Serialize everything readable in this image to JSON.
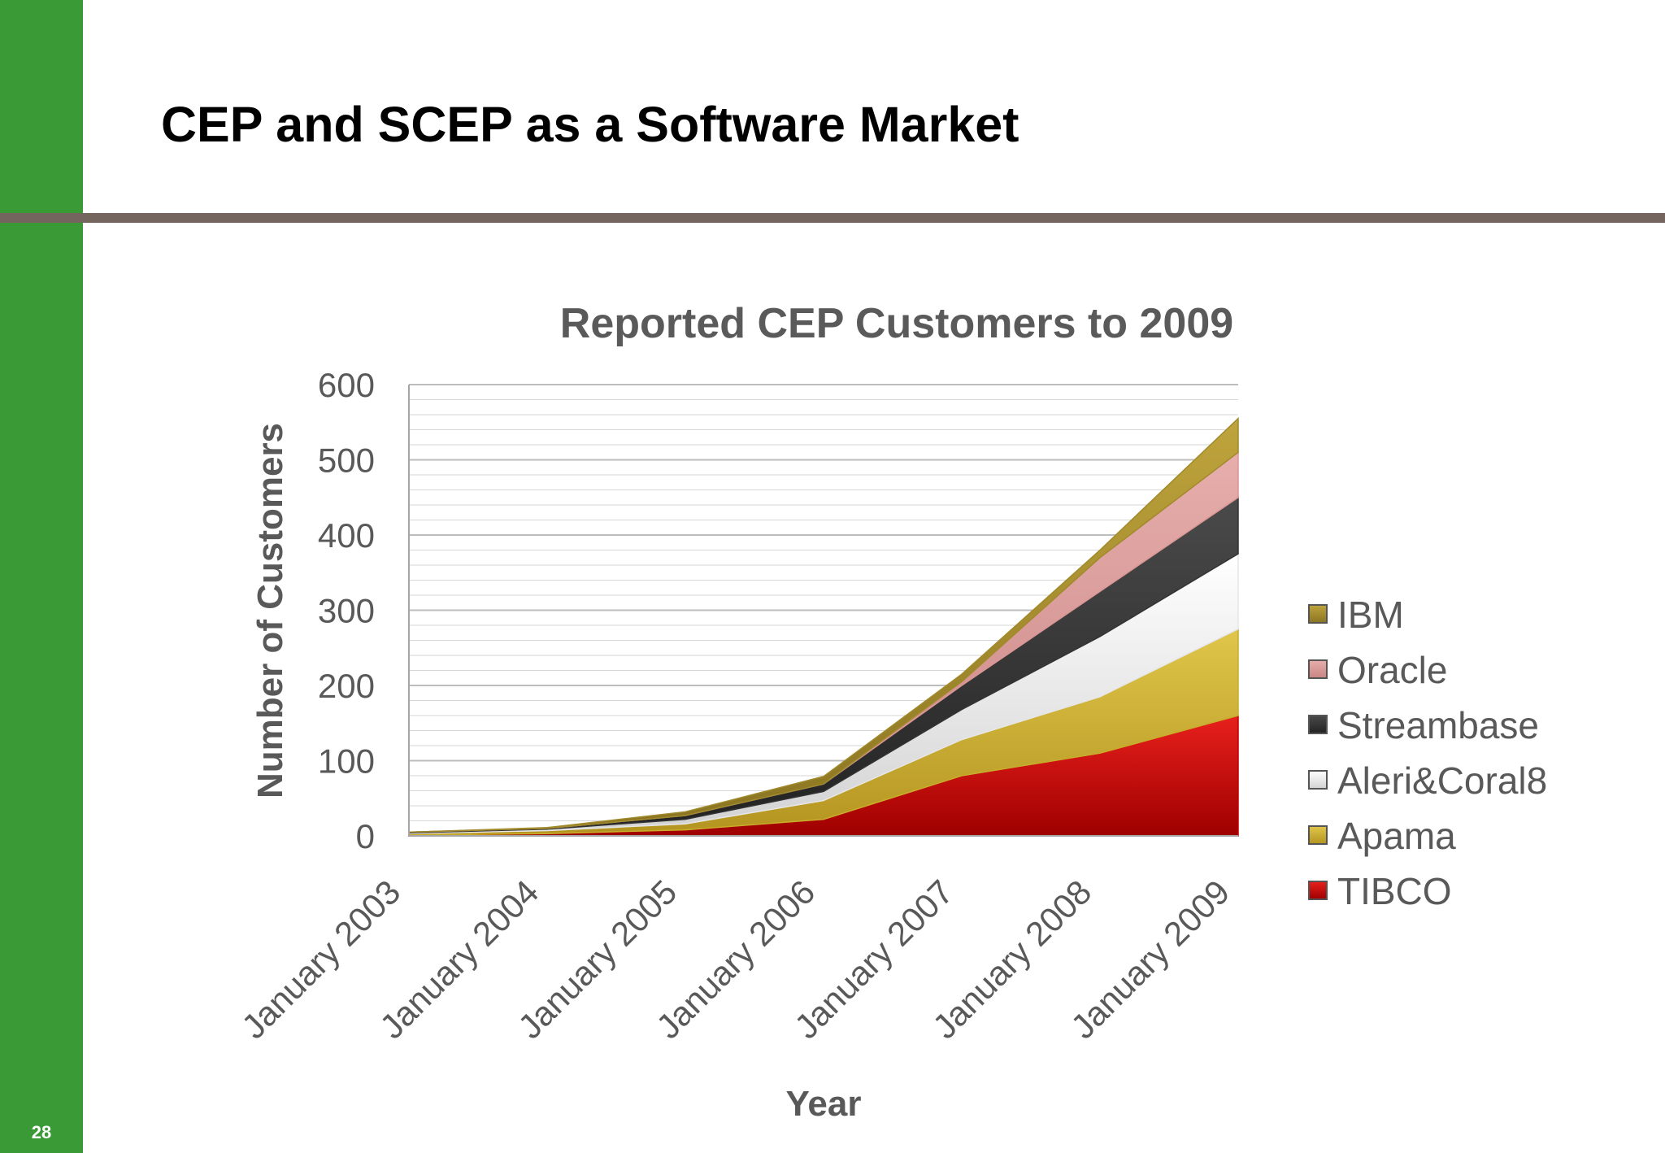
{
  "slide": {
    "title": "CEP and SCEP as a Software Market",
    "page_number": "28"
  },
  "colors": {
    "sidebar": "#3a9a35",
    "divider": "#74665f",
    "grid": "#bfbfbf",
    "text": "#595959"
  },
  "chart_data": {
    "type": "area",
    "stacked": true,
    "title": "Reported CEP Customers to 2009",
    "xlabel": "Year",
    "ylabel": "Number of Customers",
    "categories": [
      "January 2003",
      "January 2004",
      "January 2005",
      "January 2006",
      "January 2007",
      "January 2008",
      "January 2009"
    ],
    "ylim": [
      0,
      600
    ],
    "yticks": [
      0,
      100,
      200,
      300,
      400,
      500,
      600
    ],
    "grid": true,
    "legend_position": "right",
    "series": [
      {
        "name": "TIBCO",
        "color": "#c00000",
        "values": [
          1,
          3,
          8,
          22,
          80,
          110,
          160
        ]
      },
      {
        "name": "Apama",
        "color": "#c9ad2a",
        "values": [
          2,
          4,
          8,
          25,
          48,
          75,
          115
        ]
      },
      {
        "name": "Aleri&Coral8",
        "color": "#e6e6e6",
        "values": [
          1,
          2,
          6,
          12,
          40,
          80,
          100
        ]
      },
      {
        "name": "Streambase",
        "color": "#333333",
        "values": [
          1,
          1,
          5,
          10,
          32,
          60,
          75
        ]
      },
      {
        "name": "Oracle",
        "color": "#d99694",
        "values": [
          0,
          0,
          0,
          0,
          5,
          45,
          60
        ]
      },
      {
        "name": "IBM",
        "color": "#a08a2c",
        "values": [
          0,
          1,
          5,
          10,
          10,
          10,
          45
        ]
      }
    ]
  }
}
